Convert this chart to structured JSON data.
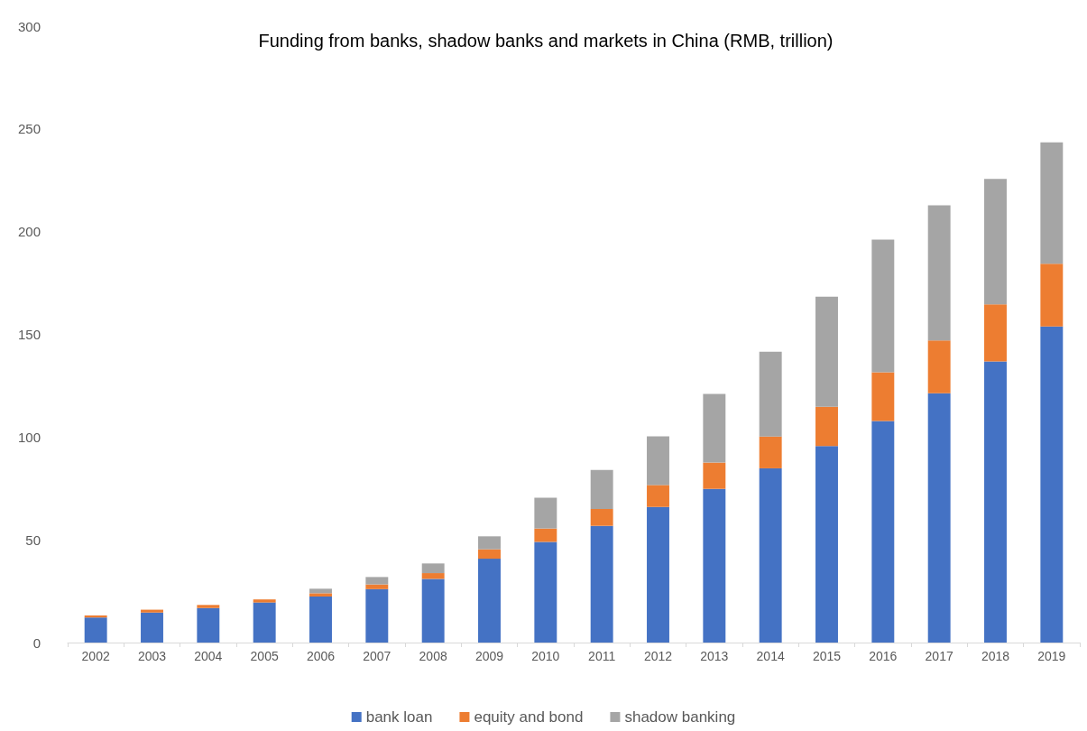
{
  "chart_data": {
    "type": "bar",
    "title": "Funding from banks, shadow banks and markets in China (RMB, trillion)",
    "stacked": true,
    "categories": [
      "2002",
      "2003",
      "2004",
      "2005",
      "2006",
      "2007",
      "2008",
      "2009",
      "2010",
      "2011",
      "2012",
      "2013",
      "2014",
      "2015",
      "2016",
      "2017",
      "2018",
      "2019"
    ],
    "series": [
      {
        "name": "bank loan",
        "color": "#4472c4",
        "values": [
          12.2,
          14.6,
          16.8,
          19.5,
          22.4,
          26,
          31,
          40.8,
          49,
          56.8,
          66,
          74.8,
          84.8,
          95.6,
          107.8,
          121.3,
          136.8,
          153.8
        ]
      },
      {
        "name": "equity and bond",
        "color": "#ed7d31",
        "values": [
          1,
          1.4,
          1.5,
          1.5,
          1.6,
          2.3,
          2.8,
          4.6,
          6.5,
          8.2,
          10.7,
          12.8,
          15.5,
          19.2,
          23.7,
          25.7,
          27.8,
          30.6
        ]
      },
      {
        "name": "shadow banking",
        "color": "#a5a5a5",
        "values": [
          null,
          null,
          null,
          null,
          2.2,
          3.6,
          4.7,
          6.3,
          15,
          19,
          23.7,
          33.4,
          41.2,
          53.5,
          64.6,
          65.8,
          61.1,
          59.1
        ]
      }
    ],
    "ylim": [
      0,
      300
    ],
    "yticks": [
      0,
      50,
      100,
      150,
      200,
      250,
      300
    ],
    "grid": false,
    "legend": "bottom"
  }
}
